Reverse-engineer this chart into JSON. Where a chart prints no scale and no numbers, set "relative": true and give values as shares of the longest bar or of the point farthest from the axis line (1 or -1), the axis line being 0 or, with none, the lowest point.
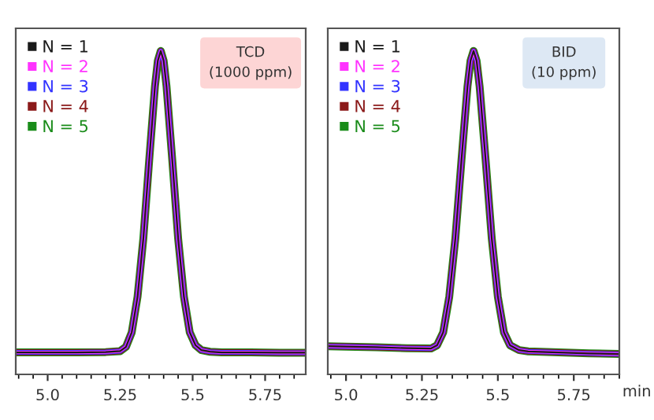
{
  "chart_data": [
    {
      "type": "line",
      "relative": true,
      "tick_labels": "x",
      "legend": "top left",
      "grid": false,
      "annotations": [
        "TCD\n(1000 ppm)"
      ],
      "xlim": [
        4.89,
        5.89
      ],
      "xticks": [
        {
          "value": 5,
          "label": "5.0"
        },
        5.25,
        5.5,
        5.75
      ],
      "x": [
        4.89,
        5.0,
        5.1,
        5.2,
        5.25,
        5.27,
        5.29,
        5.31,
        5.33,
        5.35,
        5.37,
        5.38,
        5.39,
        5.4,
        5.41,
        5.43,
        5.45,
        5.47,
        5.49,
        5.51,
        5.53,
        5.56,
        5.6,
        5.7,
        5.8,
        5.89
      ],
      "series": [
        {
          "name": "N = 5",
          "color": "#1a8c1a",
          "values": [
            0.068,
            0.068,
            0.068,
            0.069,
            0.072,
            0.085,
            0.13,
            0.24,
            0.42,
            0.66,
            0.89,
            0.97,
            1.0,
            0.97,
            0.89,
            0.66,
            0.42,
            0.24,
            0.13,
            0.09,
            0.075,
            0.07,
            0.068,
            0.068,
            0.067,
            0.067
          ]
        },
        {
          "name": "N = 4",
          "color": "#8b1a1a",
          "values": [
            0.068,
            0.068,
            0.068,
            0.069,
            0.072,
            0.085,
            0.13,
            0.24,
            0.42,
            0.66,
            0.89,
            0.97,
            1.0,
            0.97,
            0.89,
            0.66,
            0.42,
            0.24,
            0.13,
            0.09,
            0.075,
            0.07,
            0.068,
            0.068,
            0.067,
            0.067
          ]
        },
        {
          "name": "N = 3",
          "color": "#3333ff",
          "values": [
            0.068,
            0.068,
            0.068,
            0.069,
            0.072,
            0.085,
            0.13,
            0.24,
            0.42,
            0.66,
            0.89,
            0.97,
            1.0,
            0.97,
            0.89,
            0.66,
            0.42,
            0.24,
            0.13,
            0.09,
            0.075,
            0.07,
            0.068,
            0.068,
            0.067,
            0.067
          ]
        },
        {
          "name": "N = 2",
          "color": "#ff33ff",
          "values": [
            0.068,
            0.068,
            0.068,
            0.069,
            0.072,
            0.085,
            0.13,
            0.24,
            0.42,
            0.66,
            0.89,
            0.97,
            1.0,
            0.97,
            0.89,
            0.66,
            0.42,
            0.24,
            0.13,
            0.09,
            0.075,
            0.07,
            0.068,
            0.068,
            0.067,
            0.067
          ]
        },
        {
          "name": "N = 1",
          "color": "#1a1a1a",
          "values": [
            0.068,
            0.068,
            0.068,
            0.069,
            0.072,
            0.085,
            0.13,
            0.24,
            0.42,
            0.66,
            0.89,
            0.97,
            1.0,
            0.97,
            0.89,
            0.66,
            0.42,
            0.24,
            0.13,
            0.09,
            0.075,
            0.07,
            0.068,
            0.068,
            0.067,
            0.067
          ]
        }
      ]
    },
    {
      "type": "line",
      "relative": true,
      "tick_labels": "x",
      "legend": "top left",
      "grid": false,
      "xlabel": "min",
      "annotations": [
        "BID\n(10 ppm)"
      ],
      "xlim": [
        4.94,
        5.9
      ],
      "xticks": [
        {
          "value": 5,
          "label": "5.0"
        },
        5.25,
        5.5,
        5.75
      ],
      "x": [
        4.94,
        5.0,
        5.1,
        5.2,
        5.28,
        5.3,
        5.32,
        5.34,
        5.36,
        5.38,
        5.4,
        5.41,
        5.42,
        5.43,
        5.44,
        5.46,
        5.48,
        5.5,
        5.52,
        5.54,
        5.57,
        5.6,
        5.7,
        5.8,
        5.9
      ],
      "series": [
        {
          "name": "N = 5",
          "color": "#1a8c1a",
          "values": [
            0.087,
            0.086,
            0.084,
            0.081,
            0.08,
            0.09,
            0.13,
            0.24,
            0.42,
            0.66,
            0.89,
            0.97,
            1.0,
            0.97,
            0.89,
            0.66,
            0.42,
            0.24,
            0.13,
            0.09,
            0.075,
            0.071,
            0.068,
            0.065,
            0.063
          ]
        },
        {
          "name": "N = 4",
          "color": "#8b1a1a",
          "values": [
            0.087,
            0.086,
            0.084,
            0.081,
            0.08,
            0.09,
            0.13,
            0.24,
            0.42,
            0.66,
            0.89,
            0.97,
            1.0,
            0.97,
            0.89,
            0.66,
            0.42,
            0.24,
            0.13,
            0.09,
            0.075,
            0.071,
            0.068,
            0.065,
            0.063
          ]
        },
        {
          "name": "N = 3",
          "color": "#3333ff",
          "values": [
            0.087,
            0.086,
            0.084,
            0.081,
            0.08,
            0.09,
            0.13,
            0.24,
            0.42,
            0.66,
            0.89,
            0.97,
            1.0,
            0.97,
            0.89,
            0.66,
            0.42,
            0.24,
            0.13,
            0.09,
            0.075,
            0.071,
            0.068,
            0.065,
            0.063
          ]
        },
        {
          "name": "N = 2",
          "color": "#ff33ff",
          "values": [
            0.087,
            0.086,
            0.084,
            0.081,
            0.08,
            0.09,
            0.13,
            0.24,
            0.42,
            0.66,
            0.89,
            0.97,
            1.0,
            0.97,
            0.89,
            0.66,
            0.42,
            0.24,
            0.13,
            0.09,
            0.075,
            0.071,
            0.068,
            0.065,
            0.063
          ]
        },
        {
          "name": "N = 1",
          "color": "#1a1a1a",
          "values": [
            0.087,
            0.086,
            0.084,
            0.081,
            0.08,
            0.09,
            0.13,
            0.24,
            0.42,
            0.66,
            0.89,
            0.97,
            1.0,
            0.97,
            0.89,
            0.66,
            0.42,
            0.24,
            0.13,
            0.09,
            0.075,
            0.071,
            0.068,
            0.065,
            0.063
          ]
        }
      ]
    }
  ]
}
